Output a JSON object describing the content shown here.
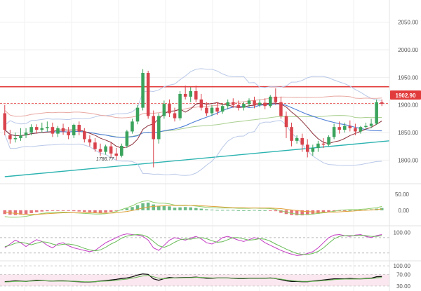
{
  "colors": {
    "up": "#3aa35c",
    "down": "#d9434c",
    "resistance": "#e23b3b",
    "trend": "#2bb3b0",
    "grid": "#eeeeee",
    "badge": "#e23b3b"
  },
  "labels": {
    "last_price": "1902.90",
    "low_marker": "1786.77"
  },
  "chart_data": [
    {
      "type": "candlestick",
      "panel": "price",
      "y_ticks": [
        "2050.00",
        "2000.00",
        "1950.00",
        "1900.00",
        "1850.00",
        "1800.00"
      ],
      "ylim": [
        1770,
        2080
      ],
      "resistance_level": 1933,
      "last_price": 1902.9,
      "low_point": 1786.77,
      "trendline": [
        [
          0,
          1770
        ],
        [
          90,
          1835
        ]
      ],
      "candles": [
        [
          1885,
          1900,
          1855,
          1845
        ],
        [
          1845,
          1855,
          1838,
          1830
        ],
        [
          1838,
          1850,
          1840,
          1832
        ],
        [
          1840,
          1858,
          1845,
          1835
        ],
        [
          1845,
          1858,
          1850,
          1840
        ],
        [
          1850,
          1865,
          1860,
          1845
        ],
        [
          1860,
          1865,
          1855,
          1848
        ],
        [
          1855,
          1868,
          1858,
          1850
        ],
        [
          1858,
          1870,
          1860,
          1852
        ],
        [
          1860,
          1868,
          1848,
          1842
        ],
        [
          1848,
          1862,
          1858,
          1842
        ],
        [
          1858,
          1866,
          1852,
          1846
        ],
        [
          1852,
          1860,
          1845,
          1838
        ],
        [
          1845,
          1866,
          1864,
          1840
        ],
        [
          1864,
          1870,
          1852,
          1845
        ],
        [
          1852,
          1858,
          1838,
          1832
        ],
        [
          1838,
          1845,
          1832,
          1825
        ],
        [
          1832,
          1840,
          1820,
          1815
        ],
        [
          1820,
          1830,
          1815,
          1808
        ],
        [
          1815,
          1828,
          1825,
          1810
        ],
        [
          1825,
          1832,
          1812,
          1805
        ],
        [
          1812,
          1822,
          1808,
          1800
        ],
        [
          1808,
          1830,
          1826,
          1805
        ],
        [
          1826,
          1855,
          1852,
          1822
        ],
        [
          1852,
          1875,
          1870,
          1848
        ],
        [
          1870,
          1900,
          1895,
          1865
        ],
        [
          1895,
          1965,
          1958,
          1890
        ],
        [
          1958,
          1962,
          1880,
          1875
        ],
        [
          1880,
          1890,
          1838,
          1787
        ],
        [
          1838,
          1885,
          1880,
          1830
        ],
        [
          1880,
          1908,
          1902,
          1875
        ],
        [
          1902,
          1910,
          1885,
          1878
        ],
        [
          1885,
          1895,
          1876,
          1870
        ],
        [
          1876,
          1925,
          1920,
          1872
        ],
        [
          1920,
          1935,
          1915,
          1910
        ],
        [
          1915,
          1932,
          1925,
          1905
        ],
        [
          1925,
          1935,
          1910,
          1905
        ],
        [
          1910,
          1920,
          1895,
          1890
        ],
        [
          1895,
          1905,
          1885,
          1880
        ],
        [
          1885,
          1900,
          1895,
          1880
        ],
        [
          1895,
          1905,
          1888,
          1882
        ],
        [
          1888,
          1902,
          1898,
          1884
        ],
        [
          1898,
          1910,
          1905,
          1892
        ],
        [
          1905,
          1912,
          1900,
          1895
        ],
        [
          1900,
          1908,
          1895,
          1890
        ],
        [
          1895,
          1906,
          1902,
          1890
        ],
        [
          1902,
          1912,
          1908,
          1896
        ],
        [
          1908,
          1915,
          1900,
          1894
        ],
        [
          1900,
          1910,
          1904,
          1896
        ],
        [
          1904,
          1912,
          1898,
          1892
        ],
        [
          1898,
          1918,
          1915,
          1895
        ],
        [
          1915,
          1930,
          1905,
          1900
        ],
        [
          1905,
          1915,
          1880,
          1875
        ],
        [
          1880,
          1888,
          1860,
          1840
        ],
        [
          1860,
          1868,
          1835,
          1825
        ],
        [
          1835,
          1845,
          1840,
          1830
        ],
        [
          1840,
          1848,
          1828,
          1815
        ],
        [
          1828,
          1838,
          1815,
          1805
        ],
        [
          1815,
          1828,
          1822,
          1808
        ],
        [
          1822,
          1835,
          1830,
          1815
        ],
        [
          1830,
          1840,
          1828,
          1822
        ],
        [
          1828,
          1845,
          1842,
          1825
        ],
        [
          1842,
          1866,
          1860,
          1838
        ],
        [
          1860,
          1870,
          1855,
          1848
        ],
        [
          1855,
          1868,
          1862,
          1850
        ],
        [
          1862,
          1872,
          1858,
          1852
        ],
        [
          1858,
          1866,
          1852,
          1845
        ],
        [
          1852,
          1862,
          1860,
          1848
        ],
        [
          1860,
          1868,
          1862,
          1855
        ],
        [
          1862,
          1875,
          1866,
          1858
        ],
        [
          1866,
          1910,
          1905,
          1864
        ],
        [
          1905,
          1910,
          1902,
          1898
        ]
      ]
    },
    {
      "type": "bar",
      "panel": "macd",
      "y_ticks": [
        "50.00",
        "0.00"
      ],
      "ylim": [
        -40,
        70
      ],
      "values": [
        -12,
        -14,
        -15,
        -14,
        -12,
        -9,
        -6,
        -4,
        -3,
        -2,
        -1,
        -1,
        -2,
        -3,
        -4,
        -5,
        -6,
        -7,
        -8,
        -7,
        -5,
        -2,
        2,
        6,
        10,
        16,
        22,
        24,
        18,
        14,
        14,
        12,
        8,
        9,
        10,
        9,
        7,
        5,
        3,
        2,
        1,
        1,
        1,
        1,
        0,
        0,
        0,
        1,
        0,
        0,
        -1,
        -3,
        -8,
        -12,
        -15,
        -16,
        -16,
        -15,
        -13,
        -11,
        -9,
        -7,
        -4,
        -2,
        -1,
        0,
        0,
        1,
        2,
        3,
        5,
        7
      ],
      "lines": [
        {
          "values": [
            -20,
            -22,
            -22,
            -21,
            -19,
            -16,
            -13,
            -10,
            -8,
            -7,
            -6,
            -6,
            -7,
            -8,
            -9,
            -10,
            -11,
            -12,
            -12,
            -11,
            -8,
            -4,
            2,
            8,
            14,
            22,
            28,
            30,
            25,
            22,
            22,
            20,
            16,
            16,
            16,
            15,
            13,
            11,
            9,
            8,
            7,
            7,
            7,
            7,
            6,
            6,
            6,
            7,
            6,
            6,
            5,
            3,
            -2,
            -6,
            -10,
            -12,
            -13,
            -13,
            -12,
            -10,
            -8,
            -6,
            -3,
            0,
            1,
            2,
            2,
            3,
            4,
            6,
            8,
            12
          ]
        },
        {
          "values": [
            -6,
            -8,
            -10,
            -12,
            -13,
            -13,
            -13,
            -12,
            -11,
            -10,
            -9,
            -8,
            -8,
            -8,
            -8,
            -8,
            -8,
            -8,
            -9,
            -9,
            -9,
            -8,
            -6,
            -4,
            -1,
            3,
            7,
            10,
            12,
            13,
            14,
            15,
            15,
            15,
            15,
            15,
            15,
            14,
            13,
            12,
            11,
            10,
            9,
            8,
            8,
            8,
            7,
            7,
            7,
            7,
            7,
            6,
            5,
            3,
            1,
            -1,
            -3,
            -4,
            -5,
            -6,
            -6,
            -6,
            -6,
            -5,
            -4,
            -3,
            -2,
            -1,
            0,
            1,
            2,
            4
          ]
        }
      ]
    },
    {
      "type": "line",
      "panel": "stochastic",
      "y_ticks": [
        "100.00"
      ],
      "ylim": [
        0,
        110
      ],
      "series": [
        {
          "values": [
            40,
            55,
            70,
            60,
            45,
            60,
            72,
            65,
            50,
            40,
            55,
            60,
            48,
            40,
            35,
            30,
            25,
            30,
            45,
            60,
            70,
            80,
            90,
            95,
            92,
            90,
            85,
            70,
            40,
            30,
            50,
            70,
            80,
            75,
            70,
            78,
            85,
            75,
            60,
            55,
            65,
            80,
            85,
            78,
            70,
            65,
            72,
            80,
            75,
            60,
            50,
            40,
            30,
            22,
            15,
            10,
            12,
            18,
            25,
            40,
            60,
            80,
            90,
            92,
            88,
            85,
            90,
            92,
            85,
            80,
            88,
            92
          ]
        },
        {
          "values": [
            45,
            50,
            58,
            62,
            58,
            52,
            58,
            64,
            62,
            55,
            50,
            54,
            55,
            52,
            46,
            38,
            32,
            28,
            32,
            42,
            55,
            65,
            78,
            86,
            90,
            92,
            90,
            82,
            65,
            48,
            42,
            50,
            62,
            72,
            75,
            74,
            78,
            80,
            76,
            68,
            62,
            64,
            72,
            80,
            80,
            75,
            70,
            72,
            76,
            74,
            66,
            55,
            45,
            35,
            26,
            18,
            14,
            14,
            18,
            26,
            40,
            58,
            75,
            85,
            88,
            88,
            88,
            89,
            88,
            85,
            85,
            88
          ]
        }
      ]
    },
    {
      "type": "line",
      "panel": "rsi",
      "y_ticks": [
        "100.00",
        "70.00",
        "30.00"
      ],
      "ylim": [
        20,
        110
      ],
      "series": [
        {
          "values": [
            45,
            46,
            48,
            47,
            46,
            48,
            50,
            49,
            48,
            47,
            48,
            48,
            47,
            46,
            45,
            44,
            44,
            45,
            47,
            49,
            51,
            53,
            56,
            58,
            62,
            68,
            72,
            70,
            55,
            50,
            56,
            60,
            58,
            59,
            60,
            60,
            61,
            59,
            57,
            57,
            58,
            58,
            58,
            57,
            56,
            56,
            57,
            57,
            57,
            57,
            58,
            56,
            52,
            48,
            46,
            46,
            45,
            45,
            47,
            49,
            51,
            53,
            55,
            55,
            55,
            56,
            55,
            55,
            56,
            57,
            62,
            63
          ]
        },
        {
          "values": [
            44,
            45,
            46,
            46,
            46,
            47,
            48,
            48,
            48,
            47,
            47,
            47,
            47,
            46,
            46,
            45,
            45,
            45,
            46,
            47,
            48,
            50,
            52,
            54,
            57,
            61,
            65,
            67,
            62,
            57,
            55,
            57,
            58,
            58,
            59,
            59,
            60,
            60,
            59,
            58,
            58,
            58,
            58,
            57,
            57,
            57,
            57,
            57,
            57,
            57,
            57,
            56,
            54,
            51,
            49,
            47,
            46,
            46,
            46,
            47,
            49,
            50,
            52,
            53,
            54,
            54,
            54,
            55,
            55,
            56,
            58,
            60
          ]
        }
      ]
    }
  ]
}
